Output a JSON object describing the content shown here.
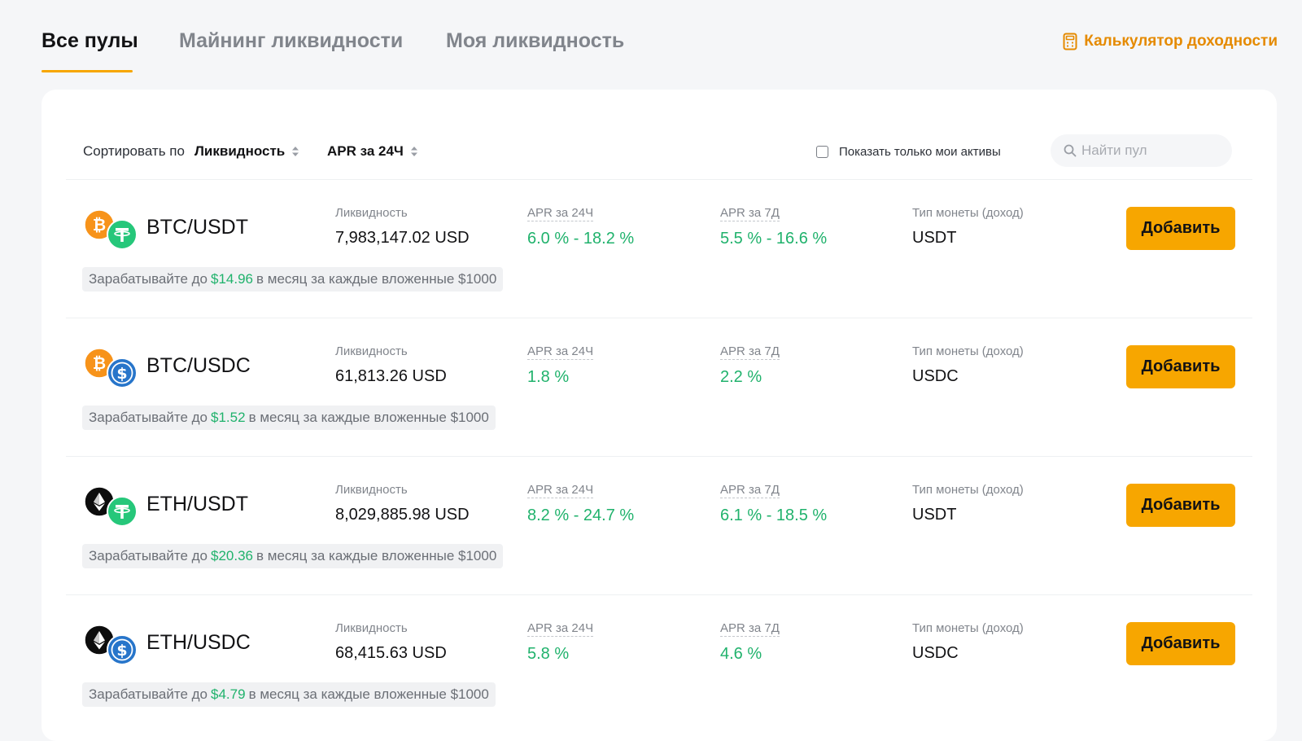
{
  "tabs": [
    {
      "label": "Все пулы",
      "active": true
    },
    {
      "label": "Майнинг ликвидности",
      "active": false
    },
    {
      "label": "Моя ликвидность",
      "active": false
    }
  ],
  "calculator": {
    "label": "Калькулятор доходности",
    "icon": "calculator-icon"
  },
  "toolbar": {
    "sort_label": "Сортировать по",
    "sort_options": [
      "Ликвидность",
      "APR за 24Ч"
    ],
    "only_mine_label": "Показать только мои активы",
    "only_mine_checked": false,
    "search_placeholder": "Найти пул",
    "search_value": ""
  },
  "column_labels": {
    "liquidity": "Ликвидность",
    "apr24": "APR за 24Ч",
    "apr7": "APR за 7Д",
    "coin_type": "Тип монеты (доход)"
  },
  "earn_text": {
    "prefix": "Зарабатывайте до",
    "suffix": "в месяц за каждые вложенные $1000"
  },
  "add_label": "Добавить",
  "colors": {
    "accent": "#f7a600",
    "positive": "#20b26c",
    "btc": "#f7931a",
    "usdt": "#26c77a",
    "usdc": "#2775ca",
    "eth": "#0d0d0d"
  },
  "pools": [
    {
      "pair": "BTC/USDT",
      "coins": [
        "btc-coin-icon",
        "usdt-coin-icon"
      ],
      "liquidity": "7,983,147.02 USD",
      "apr24": "6.0 % - 18.2 %",
      "apr7": "5.5 % - 16.6 %",
      "coin_type": "USDT",
      "earn_amount": "$14.96"
    },
    {
      "pair": "BTC/USDC",
      "coins": [
        "btc-coin-icon",
        "usdc-coin-icon"
      ],
      "liquidity": "61,813.26 USD",
      "apr24": "1.8 %",
      "apr7": "2.2 %",
      "coin_type": "USDC",
      "earn_amount": "$1.52"
    },
    {
      "pair": "ETH/USDT",
      "coins": [
        "eth-coin-icon",
        "usdt-coin-icon"
      ],
      "liquidity": "8,029,885.98 USD",
      "apr24": "8.2 % - 24.7 %",
      "apr7": "6.1 % - 18.5 %",
      "coin_type": "USDT",
      "earn_amount": "$20.36"
    },
    {
      "pair": "ETH/USDC",
      "coins": [
        "eth-coin-icon",
        "usdc-coin-icon"
      ],
      "liquidity": "68,415.63 USD",
      "apr24": "5.8 %",
      "apr7": "4.6 %",
      "coin_type": "USDC",
      "earn_amount": "$4.79"
    }
  ]
}
